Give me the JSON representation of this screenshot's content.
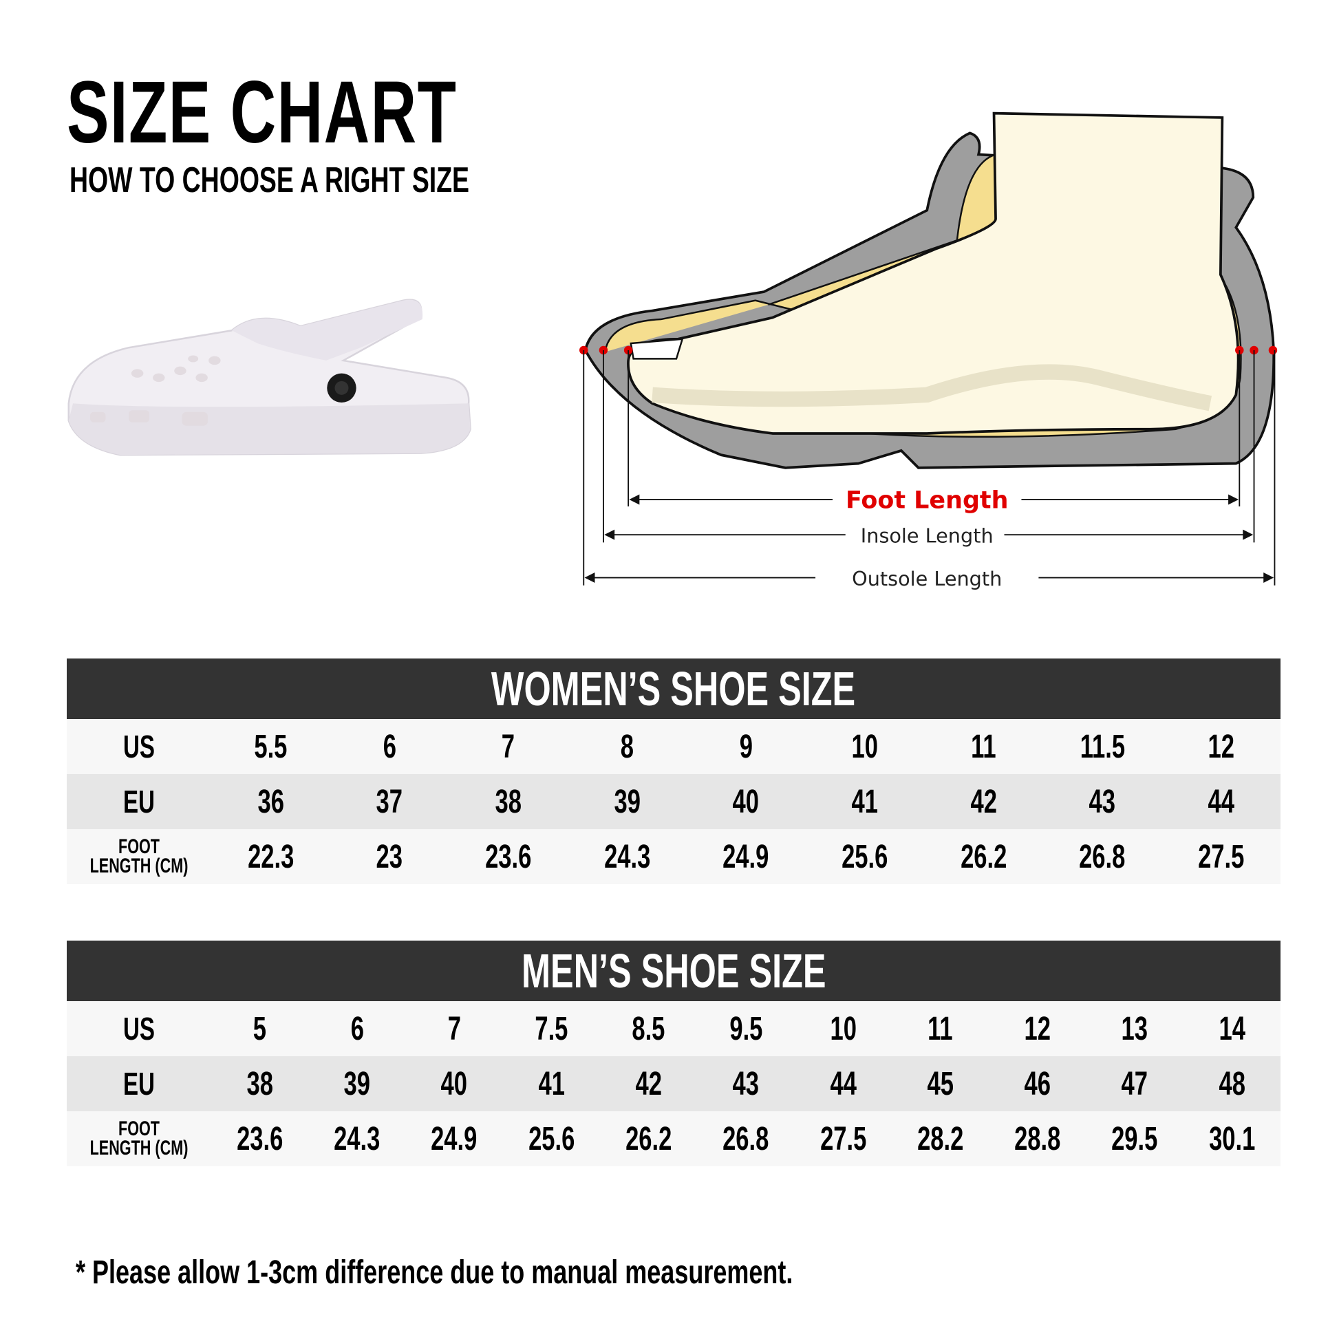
{
  "header": {
    "title": "SIZE CHART",
    "subtitle": "HOW TO CHOOSE A RIGHT SIZE"
  },
  "diagram": {
    "foot_length": "Foot Length",
    "insole_length": "Insole Length",
    "outsole_length": "Outsole Length",
    "colors": {
      "foot_length_label": "#e00000",
      "marker": "#e00000",
      "sole": "#9e9e9e",
      "insole": "#f5de8f",
      "foot": "#fdf8e3"
    }
  },
  "row_labels": {
    "us": "US",
    "eu": "EU",
    "foot1": "FOOT",
    "foot2": "LENGTH (CM)"
  },
  "women": {
    "title": "WOMEN’S SHOE SIZE",
    "us": [
      "5.5",
      "6",
      "7",
      "8",
      "9",
      "10",
      "11",
      "11.5",
      "12"
    ],
    "eu": [
      "36",
      "37",
      "38",
      "39",
      "40",
      "41",
      "42",
      "43",
      "44"
    ],
    "foot_cm": [
      "22.3",
      "23",
      "23.6",
      "24.3",
      "24.9",
      "25.6",
      "26.2",
      "26.8",
      "27.5"
    ]
  },
  "men": {
    "title": "MEN’S SHOE SIZE",
    "us": [
      "5",
      "6",
      "7",
      "7.5",
      "8.5",
      "9.5",
      "10",
      "11",
      "12",
      "13",
      "14"
    ],
    "eu": [
      "38",
      "39",
      "40",
      "41",
      "42",
      "43",
      "44",
      "45",
      "46",
      "47",
      "48"
    ],
    "foot_cm": [
      "23.6",
      "24.3",
      "24.9",
      "25.6",
      "26.2",
      "26.8",
      "27.5",
      "28.2",
      "28.8",
      "29.5",
      "30.1"
    ]
  },
  "note": "* Please allow 1-3cm difference due to manual measurement."
}
